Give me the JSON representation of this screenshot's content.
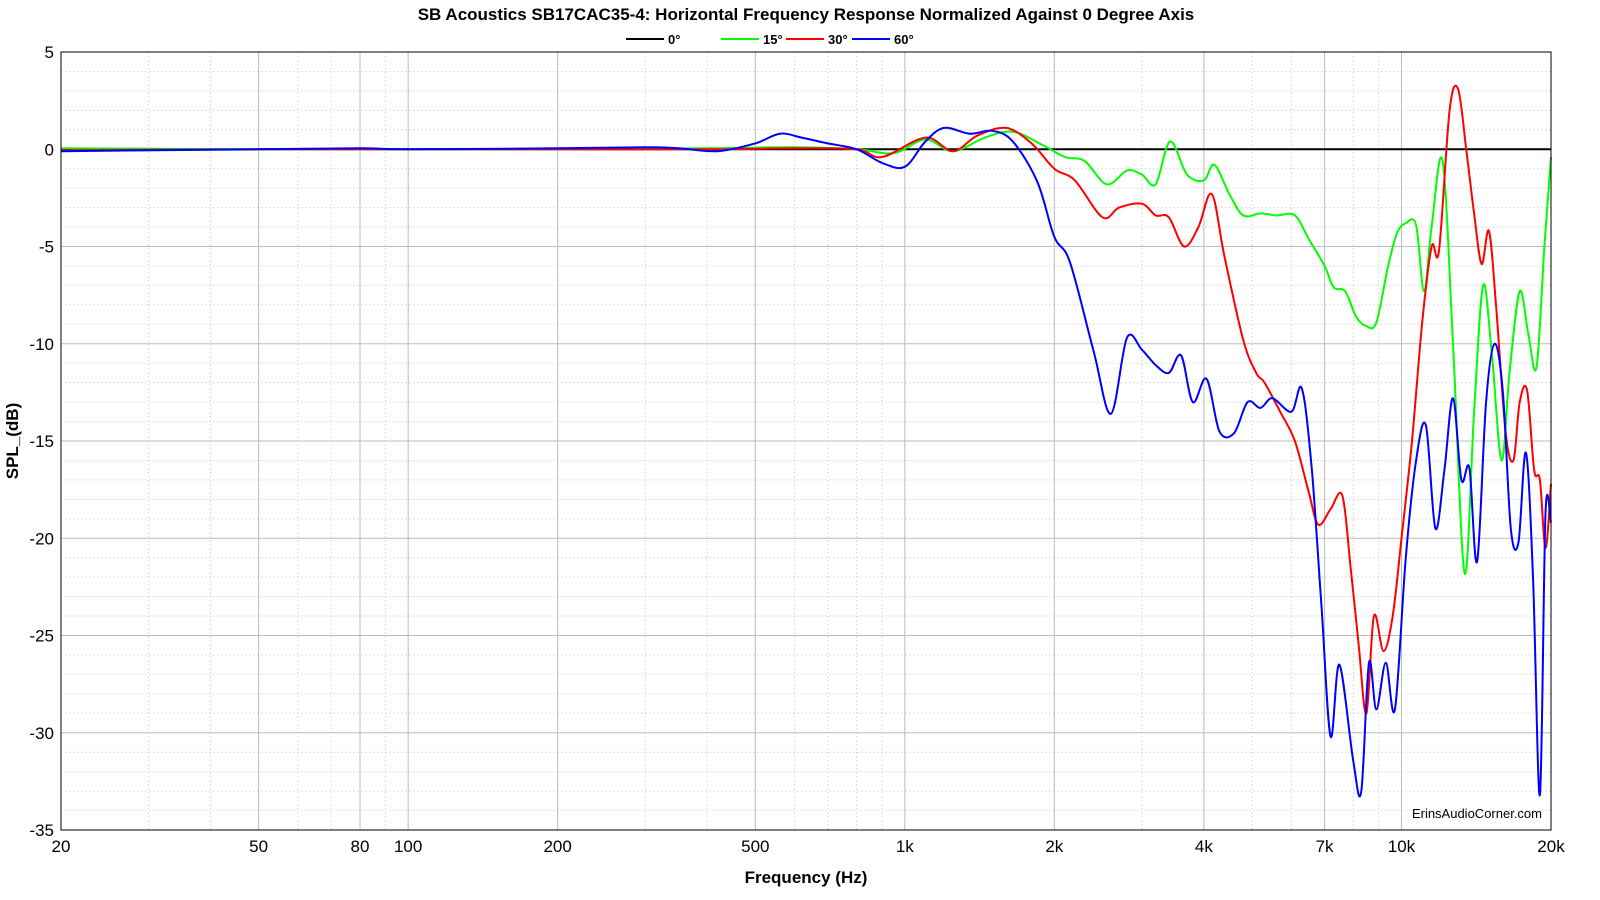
{
  "chart_data": {
    "type": "line",
    "title": "SB Acoustics SB17CAC35-4: Horizontal Frequency Response Normalized Against 0 Degree Axis",
    "xlabel": "Frequency (Hz)",
    "ylabel": "SPL_(dB)",
    "xscale": "log",
    "xlim": [
      20,
      20000
    ],
    "ylim": [
      -35,
      5
    ],
    "grid": true,
    "legend_position": "top-center",
    "watermark": "ErinsAudioCorner.com",
    "x_ticks": [
      {
        "value": 20,
        "label": "20"
      },
      {
        "value": 50,
        "label": "50"
      },
      {
        "value": 80,
        "label": "80"
      },
      {
        "value": 100,
        "label": "100"
      },
      {
        "value": 200,
        "label": "200"
      },
      {
        "value": 500,
        "label": "500"
      },
      {
        "value": 1000,
        "label": "1k"
      },
      {
        "value": 2000,
        "label": "2k"
      },
      {
        "value": 4000,
        "label": "4k"
      },
      {
        "value": 7000,
        "label": "7k"
      },
      {
        "value": 10000,
        "label": "10k"
      },
      {
        "value": 20000,
        "label": "20k"
      }
    ],
    "y_ticks": [
      {
        "value": 5,
        "label": "5"
      },
      {
        "value": 0,
        "label": "0"
      },
      {
        "value": -5,
        "label": "-5"
      },
      {
        "value": -10,
        "label": "-10"
      },
      {
        "value": -15,
        "label": "-15"
      },
      {
        "value": -20,
        "label": "-20"
      },
      {
        "value": -25,
        "label": "-25"
      },
      {
        "value": -30,
        "label": "-30"
      },
      {
        "value": -35,
        "label": "-35"
      }
    ],
    "series": [
      {
        "name": "0°",
        "color": "#000000",
        "points": [
          [
            20,
            0
          ],
          [
            20000,
            0
          ]
        ]
      },
      {
        "name": "15°",
        "color": "#00ff00",
        "points": [
          [
            20,
            0.05
          ],
          [
            50,
            0.0
          ],
          [
            100,
            0.0
          ],
          [
            200,
            0.0
          ],
          [
            400,
            0.05
          ],
          [
            600,
            0.1
          ],
          [
            800,
            0.0
          ],
          [
            950,
            -0.2
          ],
          [
            1100,
            0.5
          ],
          [
            1250,
            -0.1
          ],
          [
            1450,
            0.6
          ],
          [
            1650,
            0.9
          ],
          [
            1900,
            0.2
          ],
          [
            2100,
            -0.4
          ],
          [
            2300,
            -0.6
          ],
          [
            2550,
            -1.8
          ],
          [
            2800,
            -1.1
          ],
          [
            3000,
            -1.3
          ],
          [
            3200,
            -1.8
          ],
          [
            3420,
            0.4
          ],
          [
            3700,
            -1.3
          ],
          [
            4000,
            -1.6
          ],
          [
            4200,
            -0.8
          ],
          [
            4500,
            -2.3
          ],
          [
            4800,
            -3.4
          ],
          [
            5200,
            -3.3
          ],
          [
            5600,
            -3.4
          ],
          [
            6100,
            -3.4
          ],
          [
            6500,
            -4.6
          ],
          [
            7000,
            -6.0
          ],
          [
            7300,
            -7.1
          ],
          [
            7700,
            -7.3
          ],
          [
            8100,
            -8.6
          ],
          [
            8500,
            -9.1
          ],
          [
            8900,
            -8.9
          ],
          [
            9400,
            -6.0
          ],
          [
            9800,
            -4.3
          ],
          [
            10200,
            -3.8
          ],
          [
            10700,
            -3.9
          ],
          [
            11100,
            -7.3
          ],
          [
            11500,
            -4.0
          ],
          [
            12100,
            -0.6
          ],
          [
            12700,
            -10.0
          ],
          [
            13400,
            -21.8
          ],
          [
            14000,
            -13.5
          ],
          [
            14600,
            -7.0
          ],
          [
            15200,
            -10.5
          ],
          [
            15900,
            -16.0
          ],
          [
            16500,
            -11.5
          ],
          [
            17300,
            -7.3
          ],
          [
            18000,
            -9.5
          ],
          [
            18700,
            -11.2
          ],
          [
            19400,
            -5.0
          ],
          [
            20000,
            -0.4
          ]
        ]
      },
      {
        "name": "30°",
        "color": "#ff0000",
        "points": [
          [
            20,
            -0.05
          ],
          [
            50,
            0.0
          ],
          [
            100,
            0.0
          ],
          [
            200,
            0.0
          ],
          [
            400,
            0.0
          ],
          [
            600,
            0.05
          ],
          [
            800,
            0.0
          ],
          [
            900,
            -0.4
          ],
          [
            1100,
            0.6
          ],
          [
            1250,
            -0.1
          ],
          [
            1400,
            0.7
          ],
          [
            1600,
            1.1
          ],
          [
            1800,
            0.3
          ],
          [
            2000,
            -1.0
          ],
          [
            2200,
            -1.6
          ],
          [
            2500,
            -3.5
          ],
          [
            2700,
            -3.0
          ],
          [
            3000,
            -2.8
          ],
          [
            3200,
            -3.4
          ],
          [
            3400,
            -3.5
          ],
          [
            3650,
            -5.0
          ],
          [
            3900,
            -4.0
          ],
          [
            4150,
            -2.3
          ],
          [
            4400,
            -5.5
          ],
          [
            4800,
            -9.8
          ],
          [
            5100,
            -11.5
          ],
          [
            5300,
            -12.0
          ],
          [
            5700,
            -13.5
          ],
          [
            6100,
            -15.0
          ],
          [
            6500,
            -17.6
          ],
          [
            6800,
            -19.3
          ],
          [
            7200,
            -18.5
          ],
          [
            7600,
            -17.8
          ],
          [
            7900,
            -21.5
          ],
          [
            8200,
            -25.5
          ],
          [
            8500,
            -29.0
          ],
          [
            8800,
            -24.0
          ],
          [
            9200,
            -25.8
          ],
          [
            9600,
            -24.0
          ],
          [
            10000,
            -20.0
          ],
          [
            10500,
            -15.0
          ],
          [
            11000,
            -9.0
          ],
          [
            11500,
            -5.0
          ],
          [
            11900,
            -5.2
          ],
          [
            12500,
            2.0
          ],
          [
            13000,
            3.1
          ],
          [
            13500,
            0.0
          ],
          [
            14000,
            -3.3
          ],
          [
            14500,
            -5.9
          ],
          [
            15000,
            -4.2
          ],
          [
            15500,
            -8.0
          ],
          [
            16200,
            -14.5
          ],
          [
            16800,
            -16.0
          ],
          [
            17300,
            -13.0
          ],
          [
            17900,
            -12.4
          ],
          [
            18500,
            -16.5
          ],
          [
            19000,
            -17.0
          ],
          [
            19500,
            -20.5
          ],
          [
            20000,
            -17.2
          ]
        ]
      },
      {
        "name": "60°",
        "color": "#0000ff",
        "points": [
          [
            20,
            -0.1
          ],
          [
            50,
            0.0
          ],
          [
            80,
            0.05
          ],
          [
            100,
            0.0
          ],
          [
            200,
            0.05
          ],
          [
            300,
            0.1
          ],
          [
            350,
            0.05
          ],
          [
            420,
            -0.1
          ],
          [
            500,
            0.3
          ],
          [
            560,
            0.8
          ],
          [
            620,
            0.6
          ],
          [
            700,
            0.3
          ],
          [
            800,
            0.0
          ],
          [
            900,
            -0.7
          ],
          [
            1000,
            -0.9
          ],
          [
            1100,
            0.4
          ],
          [
            1200,
            1.1
          ],
          [
            1350,
            0.8
          ],
          [
            1500,
            0.95
          ],
          [
            1650,
            0.4
          ],
          [
            1850,
            -1.7
          ],
          [
            2000,
            -4.5
          ],
          [
            2150,
            -5.8
          ],
          [
            2400,
            -10.4
          ],
          [
            2600,
            -13.6
          ],
          [
            2800,
            -9.7
          ],
          [
            3000,
            -10.3
          ],
          [
            3200,
            -11.1
          ],
          [
            3400,
            -11.5
          ],
          [
            3600,
            -10.6
          ],
          [
            3800,
            -13.0
          ],
          [
            4050,
            -11.8
          ],
          [
            4300,
            -14.5
          ],
          [
            4600,
            -14.6
          ],
          [
            4900,
            -13.0
          ],
          [
            5200,
            -13.3
          ],
          [
            5500,
            -12.8
          ],
          [
            6000,
            -13.5
          ],
          [
            6300,
            -12.3
          ],
          [
            6600,
            -16.5
          ],
          [
            6900,
            -23.5
          ],
          [
            7200,
            -30.2
          ],
          [
            7500,
            -26.5
          ],
          [
            8000,
            -31.5
          ],
          [
            8300,
            -33.0
          ],
          [
            8600,
            -26.4
          ],
          [
            8900,
            -28.8
          ],
          [
            9300,
            -26.4
          ],
          [
            9700,
            -28.8
          ],
          [
            10200,
            -21.0
          ],
          [
            10700,
            -16.0
          ],
          [
            11200,
            -14.2
          ],
          [
            11700,
            -19.5
          ],
          [
            12200,
            -16.5
          ],
          [
            12700,
            -12.8
          ],
          [
            13200,
            -17.0
          ],
          [
            13700,
            -16.4
          ],
          [
            14200,
            -21.2
          ],
          [
            14800,
            -13.0
          ],
          [
            15400,
            -10.0
          ],
          [
            16000,
            -12.5
          ],
          [
            16600,
            -19.5
          ],
          [
            17200,
            -20.2
          ],
          [
            17800,
            -15.6
          ],
          [
            18400,
            -22.0
          ],
          [
            19000,
            -33.2
          ],
          [
            19500,
            -18.7
          ],
          [
            20000,
            -19.2
          ]
        ]
      }
    ]
  }
}
